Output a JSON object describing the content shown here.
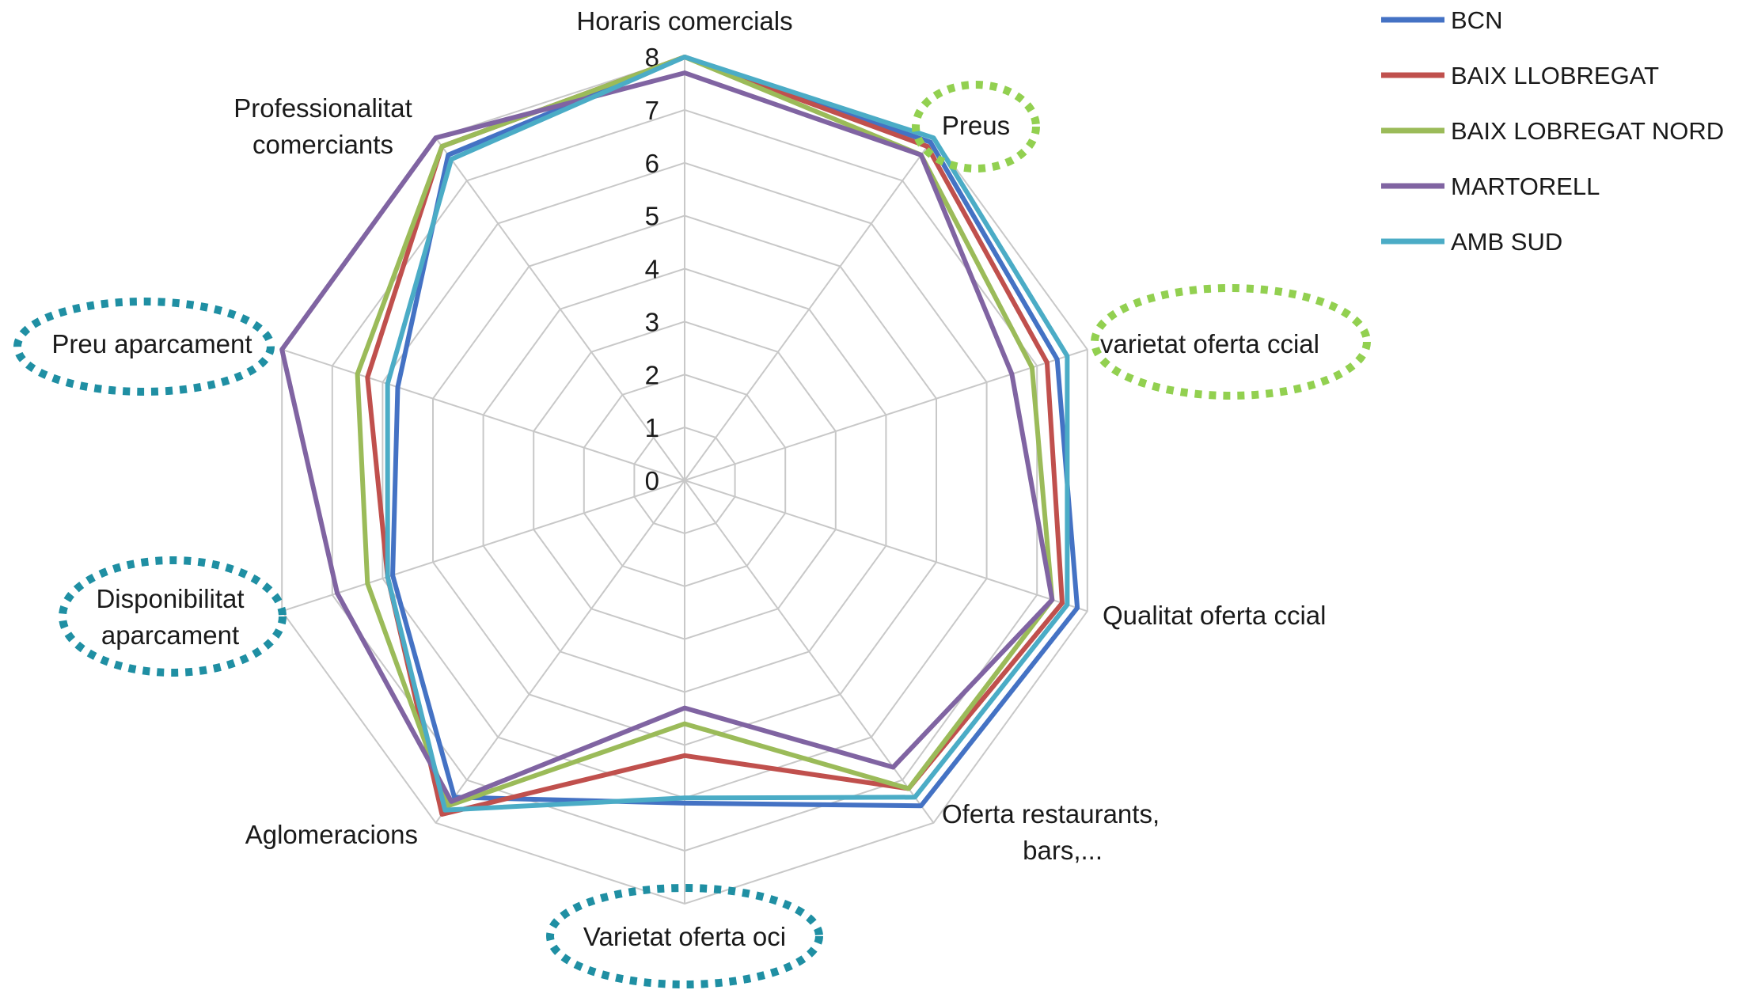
{
  "chart_data": {
    "type": "radar",
    "r_range": [
      0,
      8
    ],
    "r_ticks": [
      0,
      1,
      2,
      3,
      4,
      5,
      6,
      7,
      8
    ],
    "grid": true,
    "legend_position": "top-right",
    "categories": [
      "Horaris comercials",
      "Preus",
      "varietat oferta ccial",
      "Qualitat oferta ccial",
      "Oferta restaurants, bars,...",
      "Varietat oferta oci",
      "Aglomeracions",
      "Disponibilitat aparcament",
      "Preu aparcament",
      "Professionalitat comerciants"
    ],
    "category_lines": [
      [
        "Horaris comercials"
      ],
      [
        "Preus"
      ],
      [
        "varietat oferta ccial"
      ],
      [
        "Qualitat oferta ccial"
      ],
      [
        "Oferta restaurants,",
        "bars,..."
      ],
      [
        "Varietat oferta oci"
      ],
      [
        "Aglomeracions"
      ],
      [
        "Disponibilitat",
        "aparcament"
      ],
      [
        "Preu aparcament"
      ],
      [
        "Professionalitat",
        "comerciants"
      ]
    ],
    "highlighted_categories": [
      {
        "category": "Preus",
        "color": "#92d050"
      },
      {
        "category": "varietat oferta ccial",
        "color": "#92d050"
      },
      {
        "category": "Preu aparcament",
        "color": "#1f8fa3"
      },
      {
        "category": "Disponibilitat aparcament",
        "color": "#1f8fa3"
      },
      {
        "category": "Varietat oferta oci",
        "color": "#1f8fa3"
      }
    ],
    "series": [
      {
        "name": "BCN",
        "color": "#4472c4",
        "values": [
          8.0,
          7.9,
          7.4,
          7.8,
          7.6,
          6.1,
          7.4,
          5.8,
          5.7,
          7.6
        ]
      },
      {
        "name": "BAIX LLOBREGAT",
        "color": "#c0504d",
        "values": [
          8.0,
          7.8,
          7.2,
          7.5,
          7.2,
          5.2,
          7.8,
          5.9,
          6.3,
          7.8
        ]
      },
      {
        "name": "BAIX LOBREGAT NORD",
        "color": "#9bbb59",
        "values": [
          8.0,
          7.6,
          6.9,
          7.3,
          7.2,
          4.6,
          7.6,
          6.3,
          6.5,
          7.8
        ]
      },
      {
        "name": "MARTORELL",
        "color": "#8064a2",
        "values": [
          7.7,
          7.6,
          6.5,
          7.3,
          6.7,
          4.3,
          7.5,
          6.9,
          8.0,
          8.0
        ]
      },
      {
        "name": "AMB SUD",
        "color": "#4bacc6",
        "values": [
          8.0,
          8.0,
          7.6,
          7.6,
          7.4,
          6.0,
          7.7,
          5.9,
          5.9,
          7.5
        ]
      }
    ]
  }
}
